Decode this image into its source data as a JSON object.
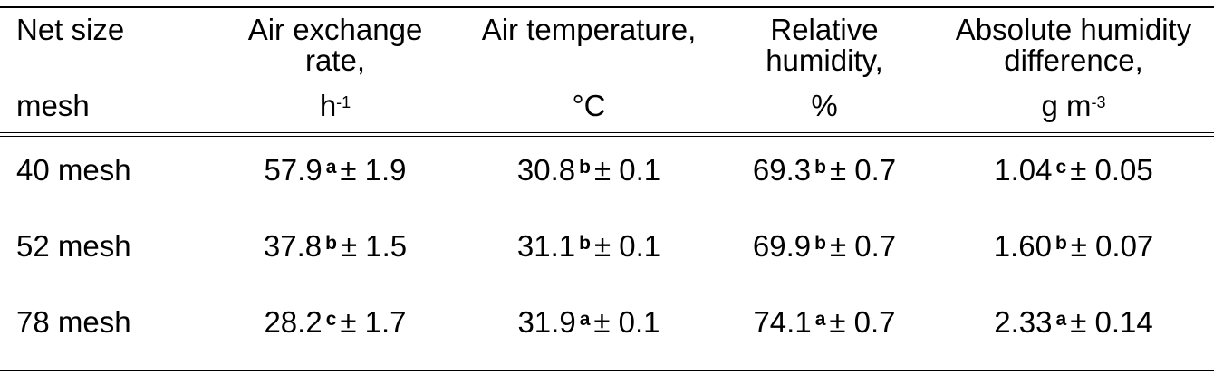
{
  "table": {
    "headers": [
      {
        "line1": "Net size",
        "line2": "",
        "line3": "mesh",
        "unit_sup": ""
      },
      {
        "line1": "Air exchange",
        "line2": "rate,",
        "line3": "h",
        "unit_sup": "-1"
      },
      {
        "line1": "Air temperature,",
        "line2": "",
        "line3": "°C",
        "unit_sup": ""
      },
      {
        "line1": "Relative",
        "line2": "humidity,",
        "line3": "%",
        "unit_sup": ""
      },
      {
        "line1": "Absolute humidity",
        "line2": "difference,",
        "line3": "g m",
        "unit_sup": "-3"
      }
    ],
    "rows": [
      {
        "label": "40 mesh",
        "cells": [
          {
            "value": "57.9",
            "sig": "a",
            "err": "± 1.9"
          },
          {
            "value": "30.8",
            "sig": "b",
            "err": "± 0.1"
          },
          {
            "value": "69.3",
            "sig": "b",
            "err": "± 0.7"
          },
          {
            "value": "1.04",
            "sig": "c",
            "err": "± 0.05"
          }
        ]
      },
      {
        "label": "52 mesh",
        "cells": [
          {
            "value": "37.8",
            "sig": "b",
            "err": "± 1.5"
          },
          {
            "value": "31.1",
            "sig": "b",
            "err": "± 0.1"
          },
          {
            "value": "69.9",
            "sig": "b",
            "err": "± 0.7"
          },
          {
            "value": "1.60",
            "sig": "b",
            "err": "± 0.07"
          }
        ]
      },
      {
        "label": "78 mesh",
        "cells": [
          {
            "value": "28.2",
            "sig": "c",
            "err": "± 1.7"
          },
          {
            "value": "31.9",
            "sig": "a",
            "err": "± 0.1"
          },
          {
            "value": "74.1",
            "sig": "a",
            "err": "± 0.7"
          },
          {
            "value": "2.33",
            "sig": "a",
            "err": "± 0.14"
          }
        ]
      }
    ]
  }
}
